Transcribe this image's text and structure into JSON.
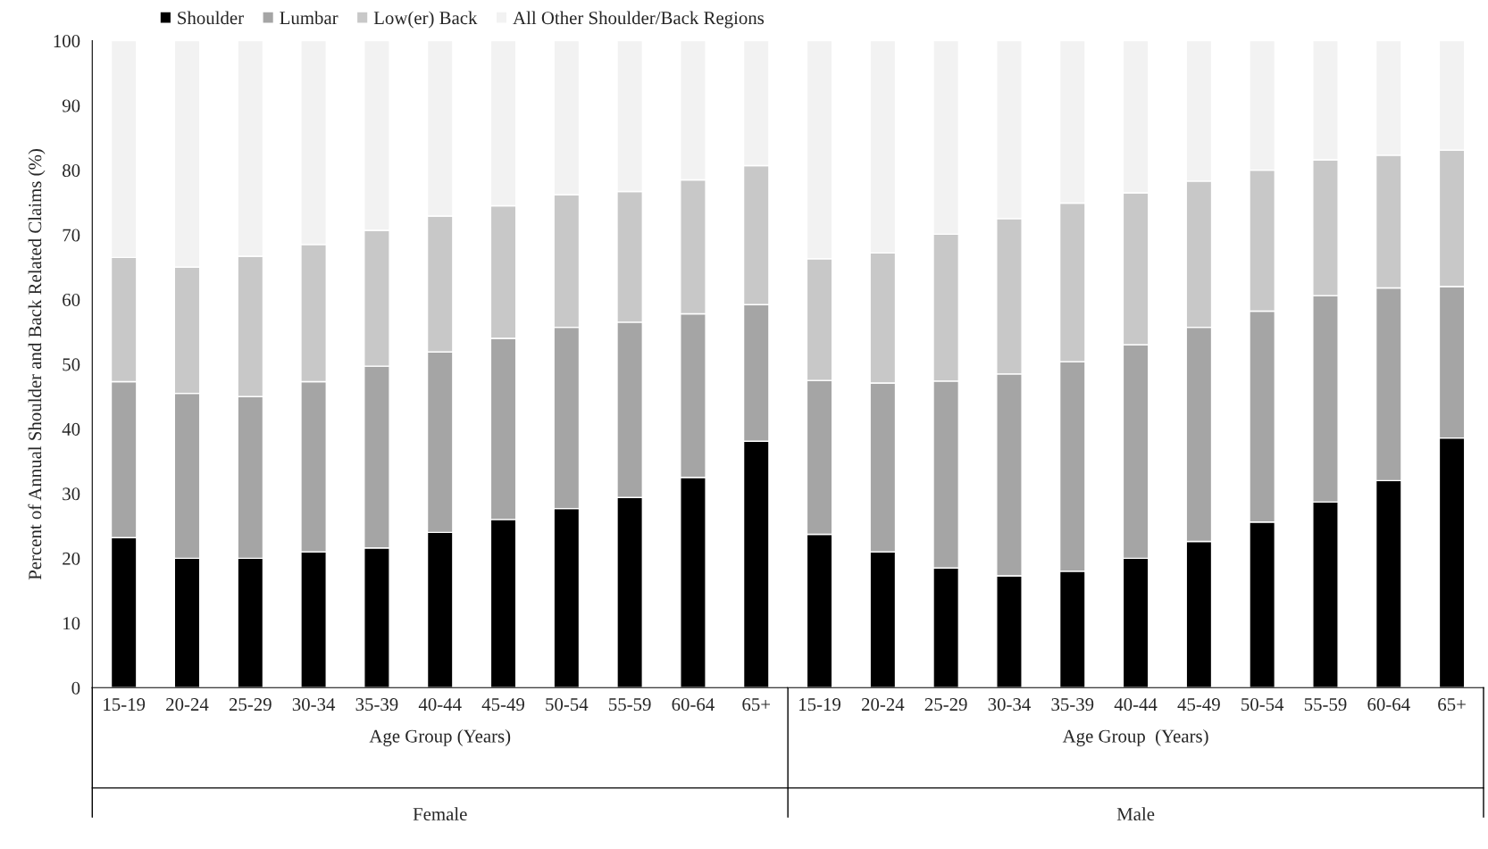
{
  "chart_data": [
    {
      "type": "bar",
      "stacked": true,
      "title": "Female",
      "xlabel": "Age Group (Years)",
      "ylabel": "Percent of Annual Shoulder and Back Related Claims (%)",
      "categories": [
        "15-19",
        "20-24",
        "25-29",
        "30-34",
        "35-39",
        "40-44",
        "45-49",
        "50-54",
        "55-59",
        "60-64",
        "65+"
      ],
      "series": [
        {
          "name": "Shoulder",
          "color": "#000000",
          "values": [
            23.2,
            20,
            20,
            21,
            21.6,
            24,
            26,
            27.7,
            29.4,
            32.5,
            38.1
          ]
        },
        {
          "name": "Lumbar",
          "color": "#a5a5a5",
          "values": [
            24.1,
            25.5,
            25,
            26.3,
            28.1,
            27.9,
            28,
            28,
            27.1,
            25.3,
            21.1
          ]
        },
        {
          "name": "Low(er) Back",
          "color": "#c8c8c8",
          "values": [
            19.2,
            19.5,
            21.7,
            21.2,
            21,
            21,
            20.5,
            20.5,
            20.2,
            20.7,
            21.5
          ]
        },
        {
          "name": "All Other Shoulder/Back Regions",
          "color": "#f2f2f2",
          "values": [
            33.5,
            35,
            33.3,
            31.5,
            29.3,
            27.1,
            25.5,
            23.8,
            23.3,
            21.5,
            19.3
          ]
        }
      ],
      "ylim": [
        0,
        100
      ],
      "yticks": [
        0,
        10,
        20,
        30,
        40,
        50,
        60,
        70,
        80,
        90,
        100
      ],
      "grid": false,
      "legend": "top"
    },
    {
      "type": "bar",
      "stacked": true,
      "title": "Male",
      "xlabel": "Age Group  (Years)",
      "categories": [
        "15-19",
        "20-24",
        "25-29",
        "30-34",
        "35-39",
        "40-44",
        "45-49",
        "50-54",
        "55-59",
        "60-64",
        "65+"
      ],
      "series": [
        {
          "color": "#000000",
          "values": [
            23.7,
            21,
            18.5,
            17.3,
            18,
            20,
            22.6,
            25.6,
            28.7,
            32,
            38.6
          ]
        },
        {
          "color": "#a5a5a5",
          "values": [
            23.8,
            26.1,
            28.9,
            31.2,
            32.4,
            33,
            33.1,
            32.6,
            31.9,
            29.8,
            23.4
          ]
        },
        {
          "color": "#c8c8c8",
          "values": [
            18.8,
            20.1,
            22.7,
            24,
            24.5,
            23.5,
            22.6,
            21.8,
            21,
            20.5,
            21.1
          ]
        },
        {
          "color": "#f2f2f2",
          "values": [
            33.7,
            32.8,
            29.9,
            27.5,
            25.1,
            23.5,
            21.7,
            20,
            18.4,
            17.7,
            16.9
          ]
        }
      ],
      "ylim": [
        0,
        100
      ],
      "yticks": [
        0,
        10,
        20,
        30,
        40,
        50,
        60,
        70,
        80,
        90,
        100
      ],
      "tick_labels": "x",
      "grid": false
    }
  ]
}
